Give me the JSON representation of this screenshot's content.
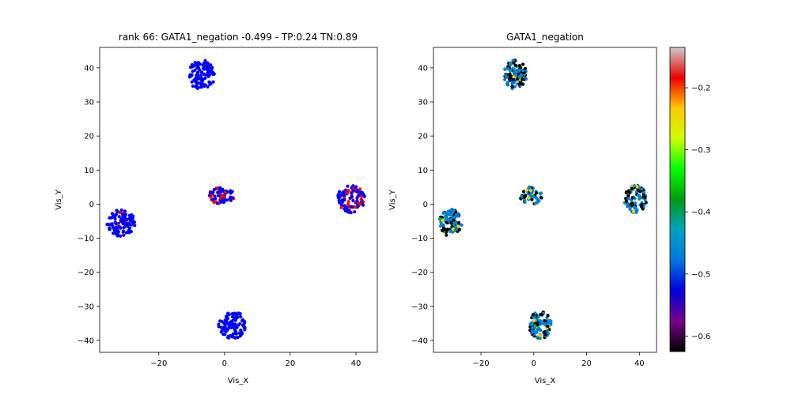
{
  "chart_data": [
    {
      "type": "scatter",
      "title": "rank 66: GATA1_negation -0.499 - TP:0.24 TN:0.89",
      "xlabel": "Vis_X",
      "ylabel": "Vis_Y",
      "xlim": [
        -38,
        46.5
      ],
      "ylim": [
        -43.5,
        46
      ],
      "xticks": [
        -20,
        0,
        20,
        40
      ],
      "yticks": [
        -40,
        -30,
        -20,
        -10,
        0,
        10,
        20,
        30,
        40
      ],
      "colors": {
        "negative": "#0000ff",
        "positive": "#ff0000"
      },
      "clusters": [
        {
          "cx": -7,
          "cy": 38,
          "rx": 4.3,
          "ry": 4.3,
          "n": 110,
          "positive_fraction": 0.0
        },
        {
          "cx": -31.5,
          "cy": -5.5,
          "rx": 4.3,
          "ry": 4.0,
          "n": 110,
          "positive_fraction": 0.05
        },
        {
          "cx": -1,
          "cy": 2.5,
          "rx": 4.3,
          "ry": 2.5,
          "n": 60,
          "positive_fraction": 0.2
        },
        {
          "cx": 38.5,
          "cy": 1.5,
          "rx": 4.3,
          "ry": 4.0,
          "n": 100,
          "positive_fraction": 0.2
        },
        {
          "cx": 2.5,
          "cy": -35.5,
          "rx": 4.3,
          "ry": 4.0,
          "n": 110,
          "positive_fraction": 0.0
        }
      ]
    },
    {
      "type": "scatter",
      "title": "GATA1_negation",
      "xlabel": "Vis_X",
      "ylabel": "Vis_Y",
      "xlim": [
        -38,
        46.5
      ],
      "ylim": [
        -43.5,
        46
      ],
      "xticks": [
        -20,
        0,
        20,
        40
      ],
      "yticks": [
        -40,
        -30,
        -20,
        -10,
        0,
        10,
        20,
        30,
        40
      ],
      "colorbar": {
        "range": [
          -0.625,
          -0.135
        ],
        "ticks": [
          -0.6,
          -0.5,
          -0.4,
          -0.3,
          -0.2
        ],
        "colormap": "nipy_spectral"
      },
      "point_colors": [
        "#000000",
        "#0088d0",
        "#0078e0",
        "#009ac0",
        "#f0d000",
        "#00c000",
        "#0090ff"
      ],
      "clusters": [
        {
          "cx": -7,
          "cy": 38,
          "rx": 4.3,
          "ry": 4.3,
          "n": 110
        },
        {
          "cx": -31.5,
          "cy": -5.5,
          "rx": 4.3,
          "ry": 4.0,
          "n": 110
        },
        {
          "cx": -1,
          "cy": 2.5,
          "rx": 4.3,
          "ry": 2.5,
          "n": 60
        },
        {
          "cx": 38.5,
          "cy": 1.5,
          "rx": 4.3,
          "ry": 4.0,
          "n": 100
        },
        {
          "cx": 2.5,
          "cy": -35.5,
          "rx": 4.3,
          "ry": 4.0,
          "n": 110
        }
      ]
    }
  ]
}
